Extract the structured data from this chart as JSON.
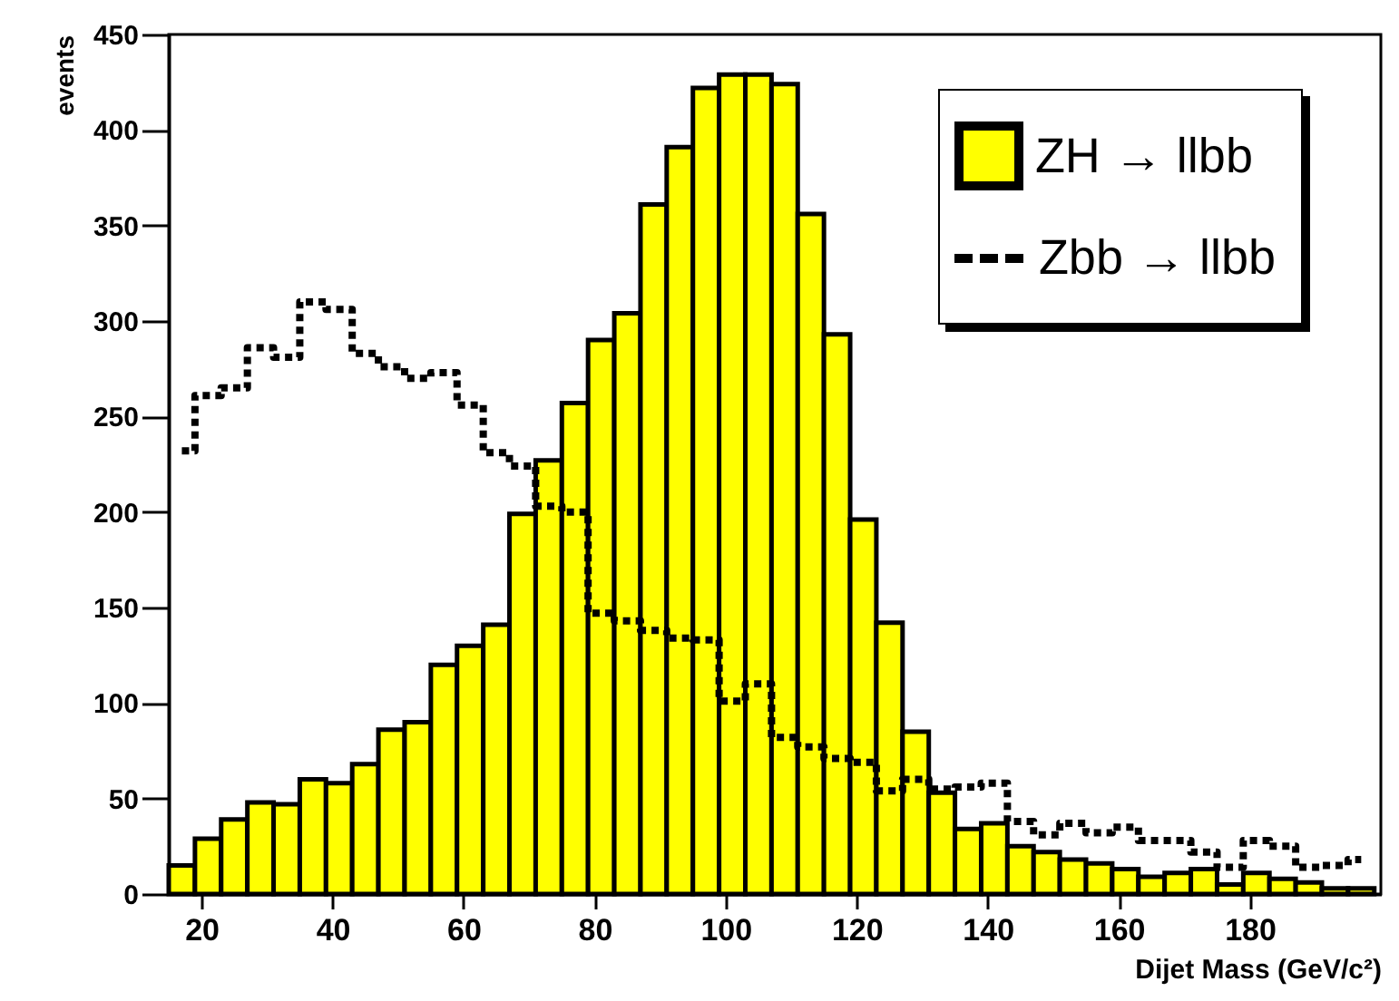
{
  "chart_data": {
    "type": "histogram",
    "xlabel": "Dijet Mass (GeV/c²)",
    "ylabel": "events",
    "bins": [
      15,
      19,
      23,
      27,
      31,
      35,
      39,
      43,
      47,
      51,
      55,
      59,
      63,
      67,
      71,
      75,
      79,
      83,
      87,
      91,
      95,
      99,
      103,
      107,
      111,
      115,
      119,
      123,
      127,
      131,
      135,
      139,
      143,
      147,
      151,
      155,
      159,
      163,
      167,
      171,
      175,
      179,
      183,
      187,
      191,
      195,
      199
    ],
    "series": [
      {
        "name": "ZH → llbb",
        "color": "#ffff00",
        "values": [
          15,
          29,
          39,
          48,
          47,
          60,
          58,
          68,
          86,
          90,
          120,
          130,
          141,
          199,
          227,
          257,
          290,
          304,
          361,
          391,
          422,
          429,
          429,
          424,
          356,
          293,
          196,
          142,
          85,
          53,
          34,
          37,
          25,
          22,
          18,
          16,
          13,
          9,
          11,
          13,
          5,
          11,
          8,
          6,
          3,
          3
        ]
      },
      {
        "name": "Zbb → llbb",
        "type": "step",
        "color": "#000000",
        "line_style": "dashed",
        "x": [
          17,
          21,
          25,
          29,
          33,
          37,
          41,
          45,
          49,
          53,
          57,
          61,
          65,
          69,
          73,
          77,
          81,
          85,
          89,
          93,
          97,
          101,
          105,
          109,
          113,
          117,
          121,
          125,
          129,
          133,
          137,
          141,
          145,
          149,
          153,
          157,
          161,
          165,
          169,
          173,
          177,
          181,
          185,
          189,
          193,
          197
        ],
        "values": [
          232,
          261,
          265,
          286,
          281,
          310,
          306,
          283,
          276,
          270,
          273,
          256,
          231,
          224,
          203,
          200,
          147,
          143,
          138,
          134,
          133,
          101,
          110,
          82,
          77,
          71,
          69,
          54,
          60,
          55,
          56,
          58,
          38,
          31,
          37,
          32,
          35,
          28,
          28,
          22,
          14,
          28,
          25,
          14,
          15,
          18
        ]
      }
    ],
    "xlim": [
      15,
      200
    ],
    "xticks": [
      20,
      40,
      60,
      80,
      100,
      120,
      140,
      160,
      180
    ],
    "ylim": [
      0,
      450
    ],
    "yticks": [
      0,
      50,
      100,
      150,
      200,
      250,
      300,
      350,
      400,
      450
    ],
    "grid": false,
    "legend": "top right"
  }
}
